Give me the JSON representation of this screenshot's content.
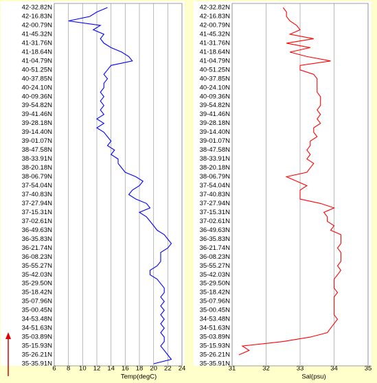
{
  "chart_data": [
    {
      "type": "line",
      "xlabel": "Temp(degC)",
      "categories": [
        "42-32.82N",
        null,
        "42-16.83N",
        null,
        "42-00.79N",
        null,
        "41-45.32N",
        null,
        "41-31.76N",
        null,
        "41-18.64N",
        null,
        "41-04.79N",
        null,
        "40-51.25N",
        null,
        "40-37.85N",
        null,
        "40-24.10N",
        null,
        "40-09.36N",
        null,
        "39-54.82N",
        null,
        "39-41.46N",
        null,
        "39-28.18N",
        null,
        "39-14.40N",
        null,
        "39-01.07N",
        null,
        "38-47.58N",
        null,
        "38-33.91N",
        null,
        "38-20.18N",
        null,
        "38-06.79N",
        null,
        "37-54.04N",
        null,
        "37-40.83N",
        null,
        "37-27.94N",
        null,
        "37-15.31N",
        null,
        "37-02.61N",
        null,
        "36-49.63N",
        null,
        "36-35.83N",
        null,
        "36-21.74N",
        null,
        "36-08.23N",
        null,
        "35-55.27N",
        null,
        "35-42.03N",
        null,
        "35-29.50N",
        null,
        "35-18.42N",
        null,
        "35-07.96N",
        null,
        "35-00.45N",
        null,
        "34-53.48N",
        null,
        "34-51.63N",
        null,
        "35-03.89N",
        null,
        "35-15.93N",
        null,
        "35-26.21N",
        null,
        "35-35.91N"
      ],
      "series": [
        {
          "color": "#0000ff",
          "values": [
            13.5,
            12,
            11,
            8,
            12.5,
            11.5,
            13,
            12.5,
            13,
            14,
            15.5,
            16.5,
            17,
            14,
            13.5,
            13,
            13.5,
            13,
            13,
            12.5,
            13,
            12.5,
            13,
            12.5,
            13,
            12,
            13,
            12,
            13,
            13.5,
            14,
            13.5,
            14.5,
            14,
            15,
            15,
            15.5,
            16,
            17.5,
            18.5,
            18,
            17,
            16.5,
            17.5,
            19,
            19.5,
            18,
            19,
            19.5,
            20,
            20.5,
            21.5,
            22,
            22.5,
            22,
            21,
            21,
            21,
            20.5,
            19.5,
            19.5,
            20.5,
            21,
            21.5,
            21.5,
            21,
            21.5,
            21,
            21.5,
            21,
            21.5,
            21,
            21.5,
            21,
            21.5,
            21.5,
            21,
            21.5,
            22,
            22.5,
            20
          ]
        }
      ],
      "xlim": [
        6,
        24
      ],
      "xticks": [
        6,
        8,
        10,
        12,
        14,
        16,
        18,
        20,
        22,
        24
      ],
      "grid": true
    },
    {
      "type": "line",
      "xlabel": "Sal(psu)",
      "categories": [
        "42-32.82N",
        null,
        "42-16.83N",
        null,
        "42-00.79N",
        null,
        "41-45.32N",
        null,
        "41-31.76N",
        null,
        "41-18.64N",
        null,
        "41-04.79N",
        null,
        "40-51.25N",
        null,
        "40-37.85N",
        null,
        "40-24.10N",
        null,
        "40-09.36N",
        null,
        "39-54.82N",
        null,
        "39-41.46N",
        null,
        "39-28.18N",
        null,
        "39-14.40N",
        null,
        "39-01.07N",
        null,
        "38-47.58N",
        null,
        "38-33.91N",
        null,
        "38-20.18N",
        null,
        "38-06.79N",
        null,
        "37-54.04N",
        null,
        "37-40.83N",
        null,
        "37-27.94N",
        null,
        "37-15.31N",
        null,
        "37-02.61N",
        null,
        "36-49.63N",
        null,
        "36-35.83N",
        null,
        "36-21.74N",
        null,
        "36-08.23N",
        null,
        "35-55.27N",
        null,
        "35-42.03N",
        null,
        "35-29.50N",
        null,
        "35-18.42N",
        null,
        "35-07.96N",
        null,
        "35-00.45N",
        null,
        "34-53.48N",
        null,
        "34-51.63N",
        null,
        "35-03.89N",
        null,
        "35-15.93N",
        null,
        "35-26.21N",
        null,
        "35-35.91N"
      ],
      "series": [
        {
          "color": "#ff0000",
          "values": [
            32.5,
            32.6,
            32.6,
            32.7,
            32.9,
            33,
            32.7,
            33.4,
            32.6,
            33.3,
            32.7,
            33.2,
            33.9,
            33,
            33,
            33.4,
            33.5,
            33.5,
            33.5,
            33.5,
            33.6,
            33.6,
            33.6,
            33.5,
            33.6,
            33.5,
            33.6,
            33.4,
            33.4,
            33.5,
            33.3,
            33.3,
            33.2,
            33.3,
            33.2,
            33.4,
            33.3,
            33.2,
            32.6,
            32.9,
            33.2,
            33,
            33,
            33,
            33.6,
            34,
            33.7,
            33.8,
            33.8,
            34,
            33.9,
            34.2,
            34.2,
            34.2,
            34.1,
            34.2,
            34.2,
            34.2,
            34.1,
            34.2,
            34.1,
            34,
            34,
            34,
            34.1,
            34,
            34,
            34,
            34,
            34,
            34.1,
            34,
            33.9,
            33.8,
            33.3,
            32.5,
            31.3,
            31.5,
            31.2,
            null,
            null
          ]
        }
      ],
      "xlim": [
        31,
        35
      ],
      "xticks": [
        31,
        32,
        33,
        34,
        35
      ],
      "grid": true
    }
  ]
}
